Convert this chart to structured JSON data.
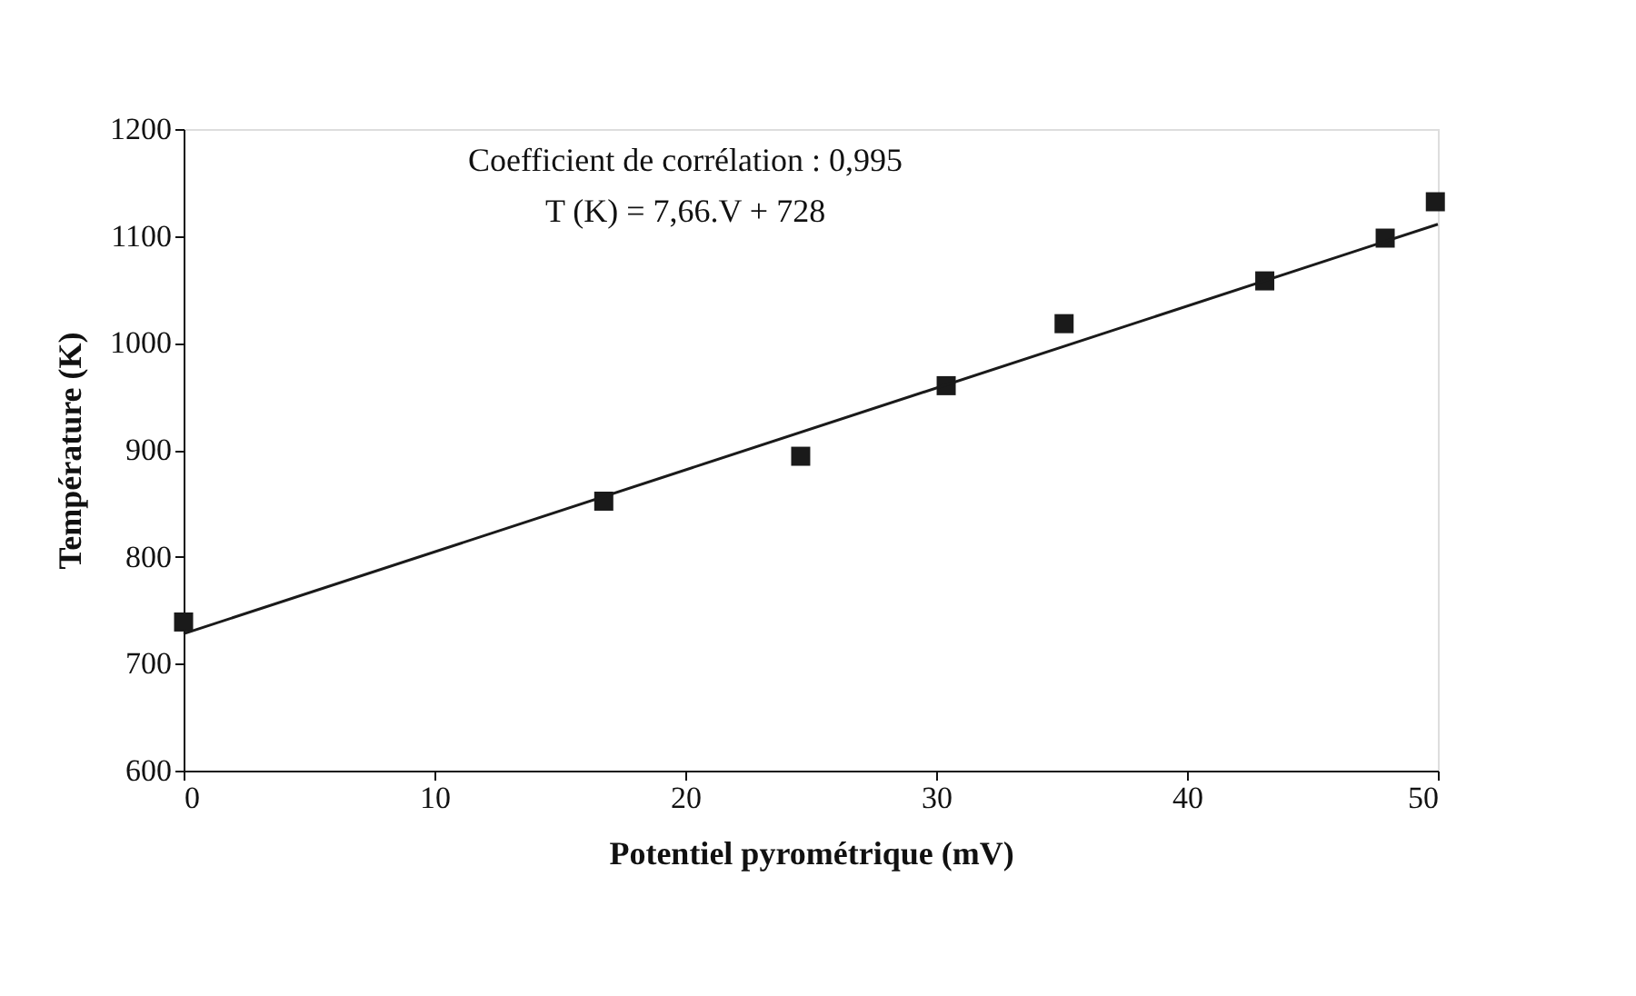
{
  "chart_data": {
    "type": "scatter",
    "xlabel": "Potentiel pyrométrique (mV)",
    "ylabel": "Température (K)",
    "annotations": [
      "Coefficient de corrélation : 0,995",
      "T (K) = 7,66.V + 728"
    ],
    "xlim": [
      0,
      50
    ],
    "ylim": [
      600,
      1200
    ],
    "xticks": [
      0,
      10,
      20,
      30,
      40,
      50
    ],
    "yticks": [
      600,
      700,
      800,
      900,
      {
        "value": 1000,
        "label": "1000"
      },
      {
        "value": 1100,
        "label": "1100"
      },
      {
        "value": 1200,
        "label": "1200"
      }
    ],
    "grid": false,
    "series": [
      {
        "marker": "square",
        "color": "#1a1a1a",
        "x": [
          0,
          16.75,
          24.6,
          30.4,
          35.1,
          43.1,
          47.9,
          49.9
        ],
        "values": [
          739,
          852,
          894,
          960,
          1018,
          1058,
          1098,
          1132
        ]
      },
      {
        "type": "line",
        "color": "#1a1a1a",
        "x": [
          0,
          50
        ],
        "values": [
          728,
          1111
        ]
      }
    ]
  }
}
